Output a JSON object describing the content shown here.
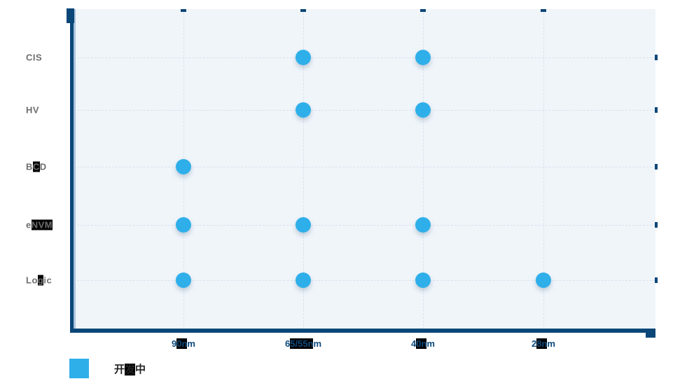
{
  "chart_data": {
    "type": "scatter",
    "title": "",
    "x_categories": [
      "90nm",
      "65/55nm",
      "40nm",
      "28nm"
    ],
    "y_categories": [
      "CIS",
      "HV",
      "BCD",
      "eNVM",
      "Logic"
    ],
    "series": [
      {
        "name": "开发中",
        "points": [
          {
            "x": "65/55nm",
            "y": "CIS"
          },
          {
            "x": "40nm",
            "y": "CIS"
          },
          {
            "x": "65/55nm",
            "y": "HV"
          },
          {
            "x": "40nm",
            "y": "HV"
          },
          {
            "x": "90nm",
            "y": "BCD"
          },
          {
            "x": "90nm",
            "y": "eNVM"
          },
          {
            "x": "65/55nm",
            "y": "eNVM"
          },
          {
            "x": "40nm",
            "y": "eNVM"
          },
          {
            "x": "90nm",
            "y": "Logic"
          },
          {
            "x": "65/55nm",
            "y": "Logic"
          },
          {
            "x": "40nm",
            "y": "Logic"
          },
          {
            "x": "28nm",
            "y": "Logic"
          }
        ]
      }
    ],
    "grid": "dashed",
    "legend_position": "bottom-left"
  },
  "y_axis": {
    "labels": [
      {
        "name": "CIS",
        "pre": "CIS",
        "hl": "",
        "post": ""
      },
      {
        "name": "HV",
        "pre": "HV",
        "hl": "",
        "post": ""
      },
      {
        "name": "BCD",
        "pre": "B",
        "hl": "C",
        "post": "D"
      },
      {
        "name": "eNVM",
        "pre": "e",
        "hl": "NVM",
        "post": ""
      },
      {
        "name": "Logic",
        "pre": "Lo",
        "hl": "g",
        "post": "ic"
      }
    ]
  },
  "x_axis": {
    "labels": [
      {
        "name": "90nm",
        "pre": "9",
        "hl": "0n",
        "post": "m"
      },
      {
        "name": "65/55nm",
        "pre": "6",
        "hl": "5/55n",
        "post": "m"
      },
      {
        "name": "40nm",
        "pre": "4",
        "hl": "0n",
        "post": "m"
      },
      {
        "name": "28nm",
        "pre": "2",
        "hl": "8n",
        "post": "m"
      }
    ]
  },
  "legend": {
    "items": [
      {
        "name": "开发中",
        "pre": "开",
        "hl": "发",
        "post": "中"
      }
    ]
  },
  "colors": {
    "accent": "#2fafea",
    "axis": "#0b4678",
    "axis_inner": "#a9c2db",
    "grid_line": "#d9e1ec",
    "plot_bg": "#f0f5fa",
    "x_label": "#0d4a7c",
    "y_label": "#6e6e6e",
    "legend_text": "#222222",
    "glitch_bg": "#000000"
  }
}
